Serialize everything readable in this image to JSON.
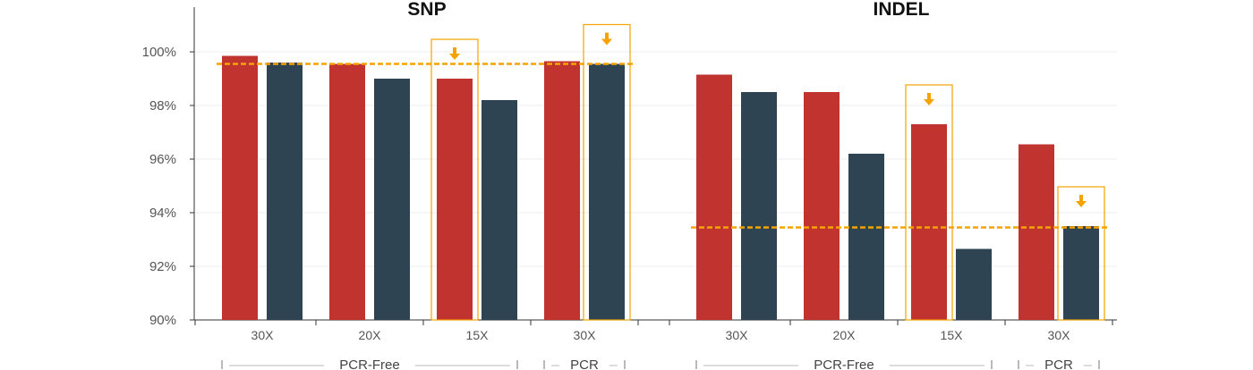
{
  "chart_data": {
    "type": "bar",
    "ylim": [
      90,
      100
    ],
    "yticks": [
      "90%",
      "92%",
      "94%",
      "96%",
      "98%",
      "100%"
    ],
    "ytick_values": [
      90,
      92,
      94,
      96,
      98,
      100
    ],
    "grid": true,
    "colors": {
      "series_a": "#c0332f",
      "series_b": "#2e4453",
      "highlight": "#f5a300"
    },
    "panels": [
      {
        "title": "SNP",
        "categories": [
          "30X",
          "20X",
          "15X",
          "30X"
        ],
        "groups": [
          {
            "label": "PCR-Free",
            "span": [
              0,
              2
            ]
          },
          {
            "label": "PCR",
            "span": [
              3,
              3
            ]
          }
        ],
        "series": [
          {
            "values": [
              99.85,
              99.55,
              99.0,
              99.65
            ]
          },
          {
            "values": [
              99.6,
              99.0,
              98.2,
              99.55
            ]
          }
        ],
        "reference_line": 99.55,
        "highlights": [
          {
            "category_index": 2,
            "series_index": 0
          },
          {
            "category_index": 3,
            "series_index": 1
          }
        ]
      },
      {
        "title": "INDEL",
        "categories": [
          "30X",
          "20X",
          "15X",
          "30X"
        ],
        "groups": [
          {
            "label": "PCR-Free",
            "span": [
              0,
              2
            ]
          },
          {
            "label": "PCR",
            "span": [
              3,
              3
            ]
          }
        ],
        "series": [
          {
            "values": [
              99.15,
              98.5,
              97.3,
              96.55
            ]
          },
          {
            "values": [
              98.5,
              96.2,
              92.65,
              93.5
            ]
          }
        ],
        "reference_line": 93.45,
        "highlights": [
          {
            "category_index": 2,
            "series_index": 0
          },
          {
            "category_index": 3,
            "series_index": 1
          }
        ]
      }
    ]
  }
}
